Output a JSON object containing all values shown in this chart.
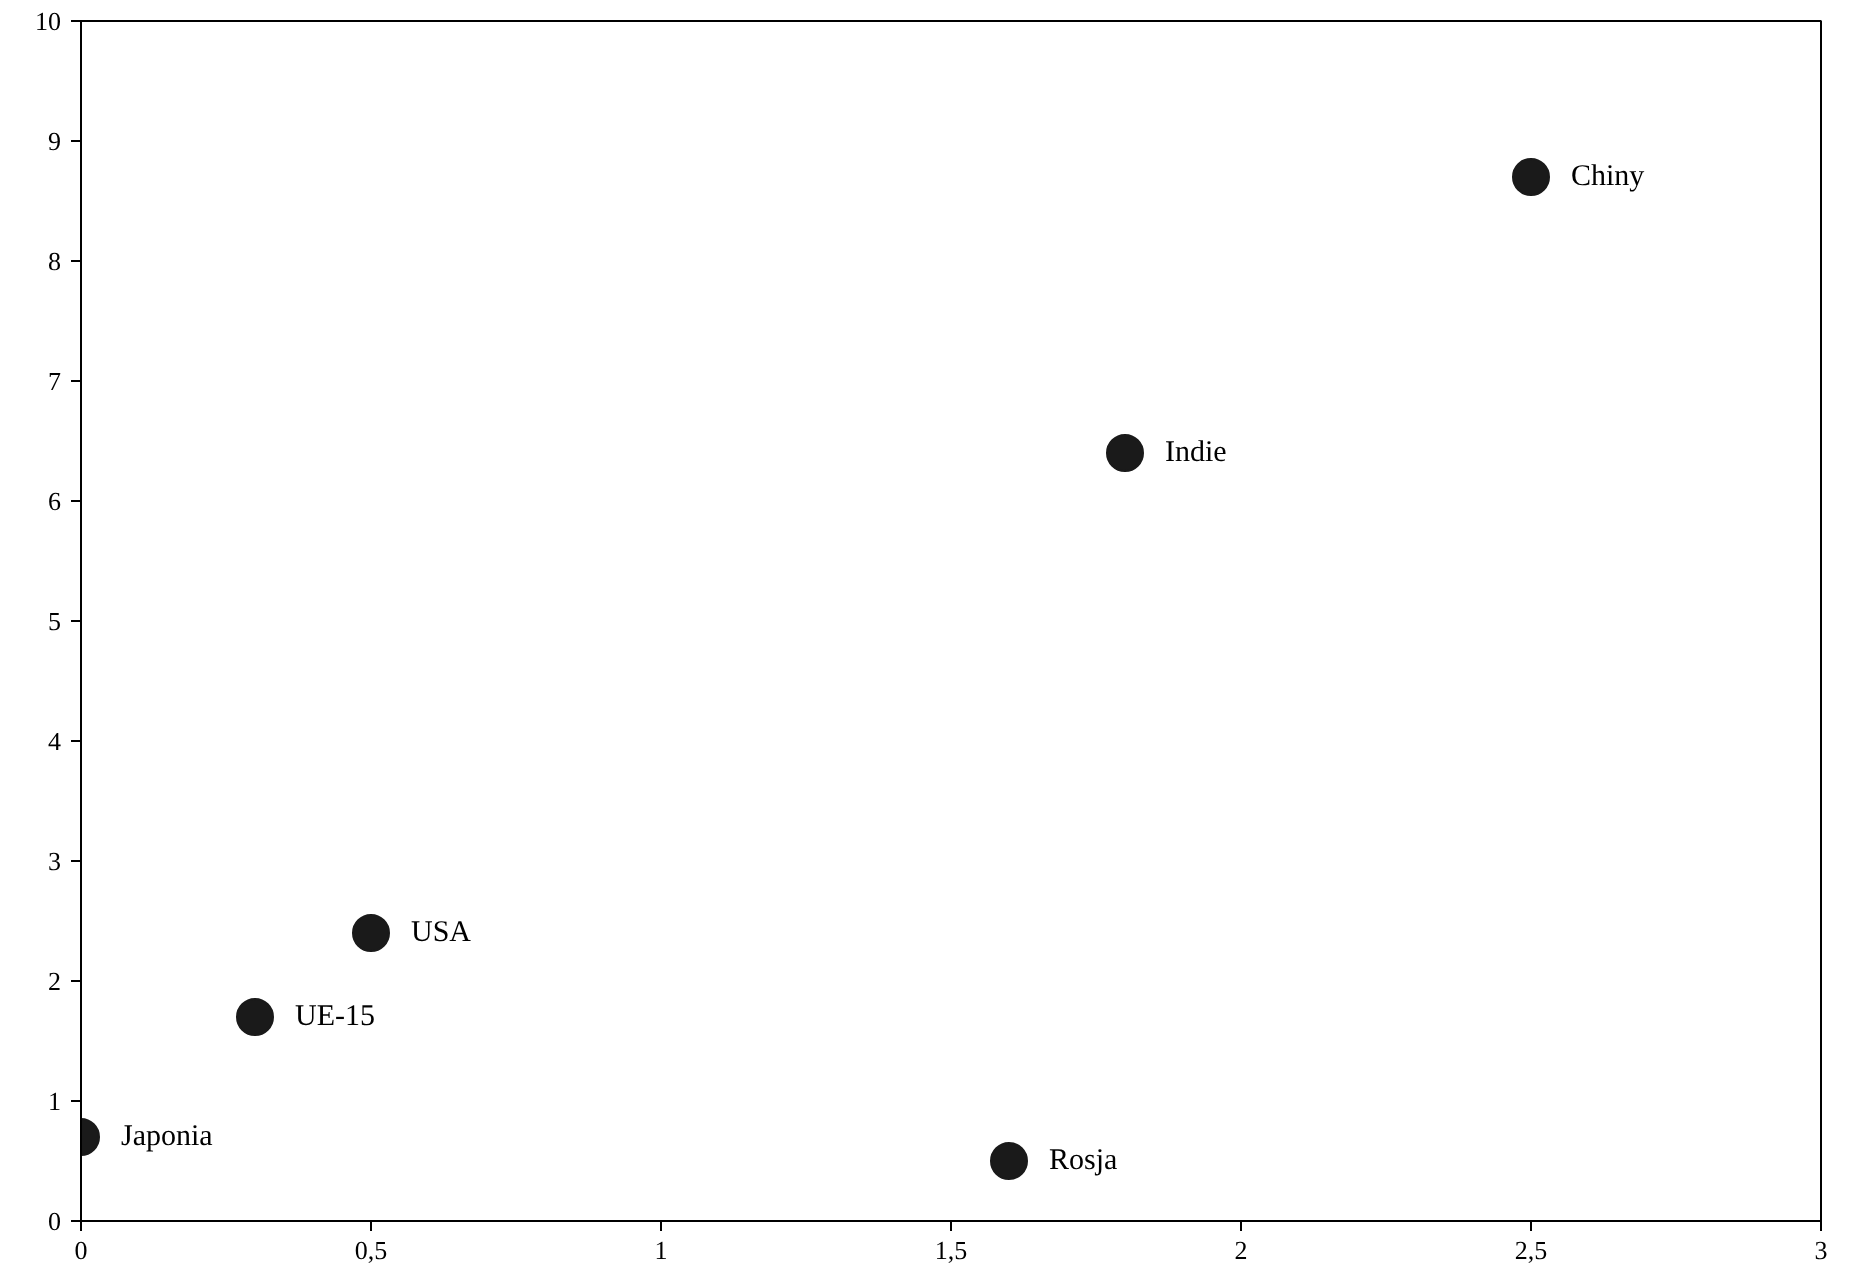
{
  "chart_data": {
    "type": "scatter",
    "x": [
      0,
      0.3,
      0.5,
      1.6,
      1.8,
      2.5
    ],
    "values": [
      0.7,
      1.7,
      2.4,
      0.5,
      6.4,
      8.7
    ],
    "color": "#1a1a1a",
    "marker": "circle",
    "grid": false,
    "xlim": [
      0,
      3
    ],
    "ylim": [
      0,
      10
    ],
    "xticks": [
      0,
      {
        "value": 0.5,
        "label": "0,5"
      },
      1,
      {
        "value": 1.5,
        "label": "1,5"
      },
      2,
      {
        "value": 2.5,
        "label": "2,5"
      },
      3
    ],
    "yticks": [
      0,
      1,
      2,
      3,
      4,
      5,
      6,
      7,
      8,
      9,
      10
    ],
    "annotations": [
      {
        "text": "Japonia",
        "x": 0,
        "y": 0.7
      },
      {
        "text": "UE-15",
        "x": 0.3,
        "y": 1.7
      },
      {
        "text": "USA",
        "x": 0.5,
        "y": 2.4
      },
      {
        "text": "Rosja",
        "x": 1.6,
        "y": 0.5
      },
      {
        "text": "Indie",
        "x": 1.8,
        "y": 6.4
      },
      {
        "text": "Chiny",
        "x": 2.5,
        "y": 8.7
      }
    ]
  }
}
